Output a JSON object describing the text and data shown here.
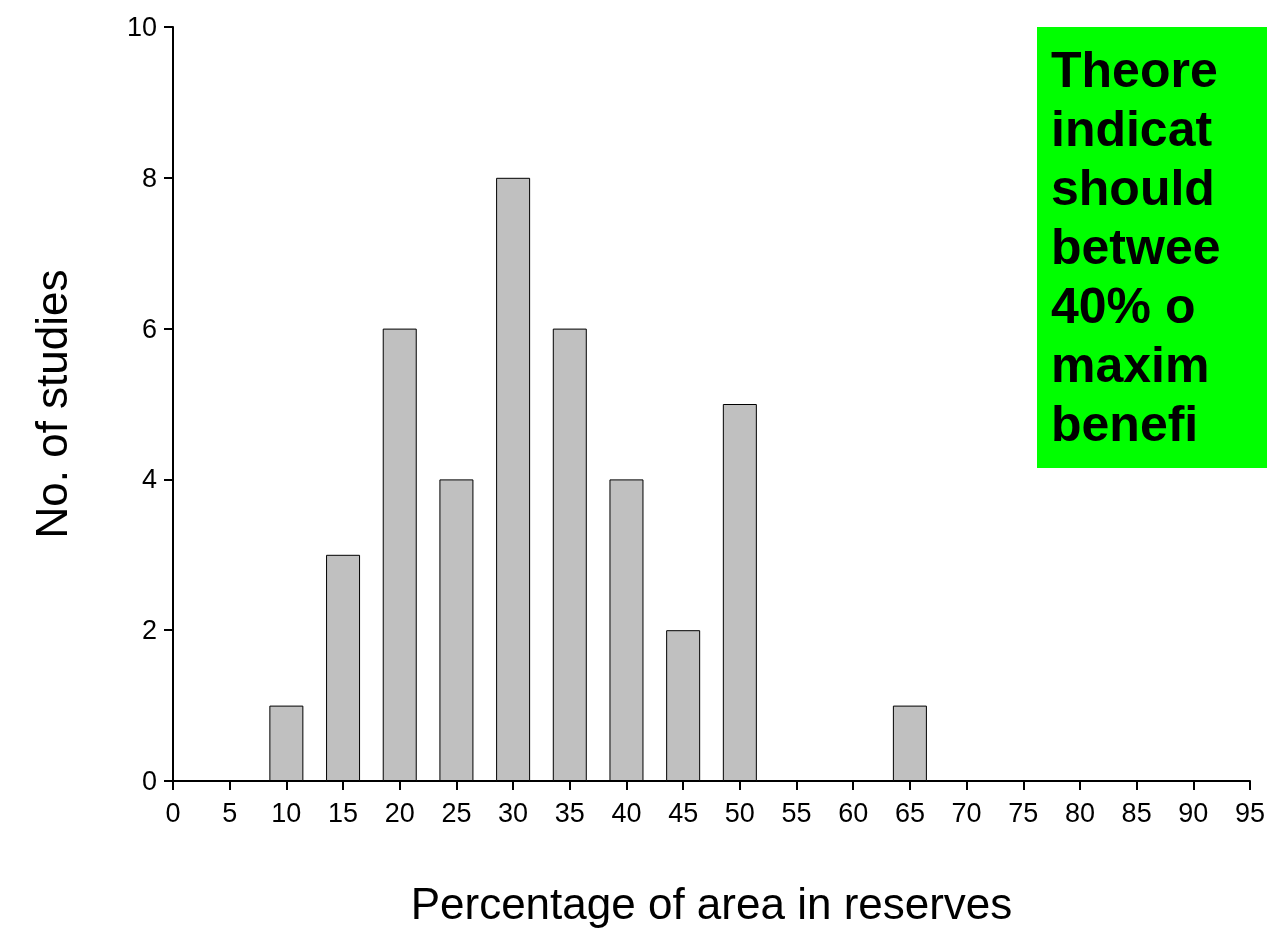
{
  "chart_data": {
    "type": "bar",
    "xlabel": "Percentage of area in reserves",
    "ylabel": "No. of studies",
    "categories": [
      "0",
      "5",
      "10",
      "15",
      "20",
      "25",
      "30",
      "35",
      "40",
      "45",
      "50",
      "55",
      "60",
      "65",
      "70",
      "75",
      "80",
      "85",
      "90",
      "95"
    ],
    "values": [
      0,
      0,
      1,
      3,
      6,
      4,
      8,
      6,
      4,
      2,
      5,
      0,
      0,
      1,
      0,
      0,
      0,
      0,
      0,
      0
    ],
    "color": "#c0c0c0",
    "ylim": [
      0,
      10
    ],
    "yticks": [
      0,
      2,
      4,
      6,
      8,
      10
    ],
    "grid": false,
    "annotations": [
      "Theore\nindicat\nshould\nbetwee\n40% o\nmaxim\nbenefi"
    ]
  }
}
